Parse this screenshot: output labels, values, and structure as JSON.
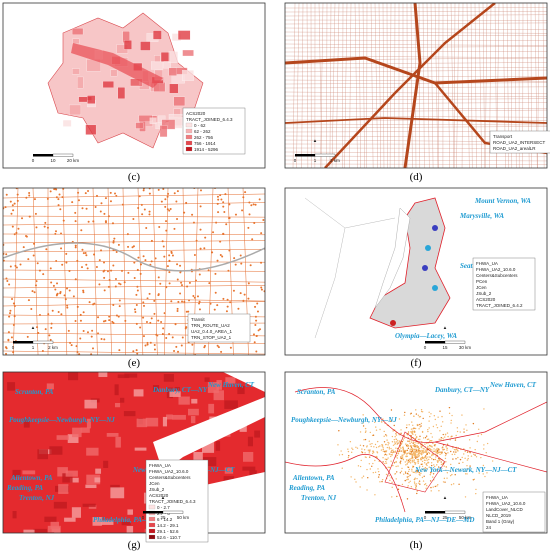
{
  "panels": [
    {
      "caption": "(c)",
      "legend": [
        "ACS2020",
        "TRACT_JOINED_6.4.3",
        "0 - 62",
        "62 - 262",
        "262 - 756",
        "756 - 1914",
        "1914 - 5296"
      ],
      "places": [],
      "scale": [
        "0",
        "10",
        "20 km"
      ]
    },
    {
      "caption": "(d)",
      "legend": [
        "Transport",
        "ROAD_UA2_INTERSECT",
        "ROAD_UA2_arealLR"
      ],
      "places": [],
      "scale": [
        "0",
        "1",
        "2 km"
      ]
    },
    {
      "caption": "(e)",
      "legend": [
        "Transit",
        "TRN_ROUTE_UA2",
        "UA2_0.4.0_AREA_1",
        "TRN_STOP_UA2_1"
      ],
      "places": [],
      "scale": [
        "0",
        "1",
        "2 km"
      ]
    },
    {
      "caption": "(f)",
      "legend": [
        "FHWA_UA",
        "FHWA_UA2_10.6.0",
        "Centers&Subcenters",
        "PCen",
        "JCen",
        "JSub_2",
        "ACS2020",
        "TRACT_JOINED_6.4.2"
      ],
      "places": [
        "Mount Vernon, WA",
        "Marysville, WA",
        "Seattle, WA",
        "Olympia—Lacey, WA"
      ],
      "scale": [
        "0",
        "15",
        "30 km"
      ]
    },
    {
      "caption": "(g)",
      "legend": [
        "FHWA_UA",
        "FHWA_UA2_10.6.0",
        "Centers&Subcenters",
        "JCen",
        "JSub_2",
        "ACS2020",
        "TRACT_JOINED_6.4.3",
        "0 - 2.7",
        "2.7 - 6",
        "6 - 14.2",
        "14.2 - 29.1",
        "29.1 - 52.6",
        "52.6 - 110.7"
      ],
      "places": [
        "Scranton, PA",
        "Danbury, CT—NY",
        "New Haven, CT",
        "Poughkeepsie—Newburgh, NY—NJ",
        "Allentown, PA",
        "Reading, PA",
        "Trenton, NJ",
        "New York—Newark, NY—NJ—CT",
        "Philadelphia, PA—NJ—DE—MD"
      ],
      "scale": [
        "0",
        "25",
        "50 km"
      ]
    },
    {
      "caption": "(h)",
      "legend": [
        "FHWA_UA",
        "FHWA_UA2_10.6.0",
        "LandCover_NLCD",
        "NLCD_2019",
        "Band 1 (Gray)",
        "24"
      ],
      "places": [
        "Scranton, PA",
        "Danbury, CT—NY",
        "New Haven, CT",
        "Poughkeepsie—Newburgh, NY—NJ",
        "Allentown, PA",
        "Reading, PA",
        "Trenton, NJ",
        "New York—Newark, NY—NJ—CT",
        "Philadelphia, PA—NJ—DE—MD"
      ],
      "scale": [
        "0",
        "25",
        "50 km"
      ]
    }
  ]
}
